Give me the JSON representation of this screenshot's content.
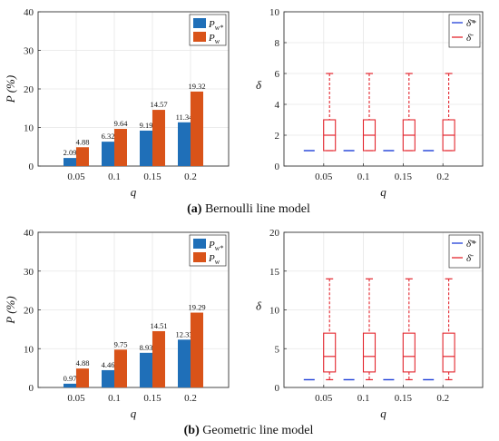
{
  "chart_data": [
    {
      "type": "bar",
      "ylabel": "P (%)",
      "xlabel": "q",
      "categories": [
        "0.05",
        "0.1",
        "0.15",
        "0.2"
      ],
      "ylim": [
        0,
        40
      ],
      "yticks": [
        0,
        10,
        20,
        30,
        40
      ],
      "grid": true,
      "legend_position": "top-right",
      "series": [
        {
          "name": "Pw*",
          "color": "#1f6fb8",
          "values": [
            2.09,
            6.32,
            9.19,
            11.34
          ],
          "labels": [
            "2.09",
            "6.32",
            "9.19",
            "11.34"
          ]
        },
        {
          "name": "Pw",
          "color": "#d95319",
          "values": [
            4.88,
            9.64,
            14.57,
            19.32
          ],
          "labels": [
            "4.88",
            "9.64",
            "14.57",
            "19.32"
          ]
        }
      ]
    },
    {
      "type": "box",
      "ylabel": "δ",
      "xlabel": "q",
      "categories": [
        "0.05",
        "0.1",
        "0.15",
        "0.2"
      ],
      "ylim": [
        0,
        10
      ],
      "yticks": [
        0,
        2,
        4,
        6,
        8,
        10
      ],
      "grid": true,
      "legend_position": "top-right",
      "series": [
        {
          "name": "δ̄*",
          "color": "#1f3fd8",
          "values": [
            1,
            1,
            1,
            1
          ]
        },
        {
          "name": "δ̄",
          "color": "#e3262e",
          "boxes": [
            {
              "min": 1,
              "q1": 1,
              "median": 2,
              "q3": 3,
              "max": 6
            },
            {
              "min": 1,
              "q1": 1,
              "median": 2,
              "q3": 3,
              "max": 6
            },
            {
              "min": 1,
              "q1": 1,
              "median": 2,
              "q3": 3,
              "max": 6
            },
            {
              "min": 1,
              "q1": 1,
              "median": 2,
              "q3": 3,
              "max": 6
            }
          ]
        }
      ]
    },
    {
      "type": "bar",
      "ylabel": "P (%)",
      "xlabel": "q",
      "categories": [
        "0.05",
        "0.1",
        "0.15",
        "0.2"
      ],
      "ylim": [
        0,
        40
      ],
      "yticks": [
        0,
        10,
        20,
        30,
        40
      ],
      "grid": true,
      "legend_position": "top-right",
      "series": [
        {
          "name": "Pw*",
          "color": "#1f6fb8",
          "values": [
            0.97,
            4.46,
            8.93,
            12.33
          ],
          "labels": [
            "0.97",
            "4.46",
            "8.93",
            "12.33"
          ]
        },
        {
          "name": "Pw",
          "color": "#d95319",
          "values": [
            4.88,
            9.75,
            14.51,
            19.29
          ],
          "labels": [
            "4.88",
            "9.75",
            "14.51",
            "19.29"
          ]
        }
      ]
    },
    {
      "type": "box",
      "ylabel": "δ",
      "xlabel": "q",
      "categories": [
        "0.05",
        "0.1",
        "0.15",
        "0.2"
      ],
      "ylim": [
        0,
        20
      ],
      "yticks": [
        0,
        5,
        10,
        15,
        20
      ],
      "grid": true,
      "legend_position": "top-right",
      "series": [
        {
          "name": "δ̄*",
          "color": "#1f3fd8",
          "values": [
            1,
            1,
            1,
            1
          ]
        },
        {
          "name": "δ̄",
          "color": "#e3262e",
          "boxes": [
            {
              "min": 1,
              "q1": 2,
              "median": 4,
              "q3": 7,
              "max": 14
            },
            {
              "min": 1,
              "q1": 2,
              "median": 4,
              "q3": 7,
              "max": 14
            },
            {
              "min": 1,
              "q1": 2,
              "median": 4,
              "q3": 7,
              "max": 14
            },
            {
              "min": 1,
              "q1": 2,
              "median": 4,
              "q3": 7,
              "max": 14
            }
          ]
        }
      ]
    }
  ],
  "captions": {
    "a_tag": "(a)",
    "a_text": " Bernoulli line model",
    "b_tag": "(b)",
    "b_text": " Geometric line model"
  }
}
